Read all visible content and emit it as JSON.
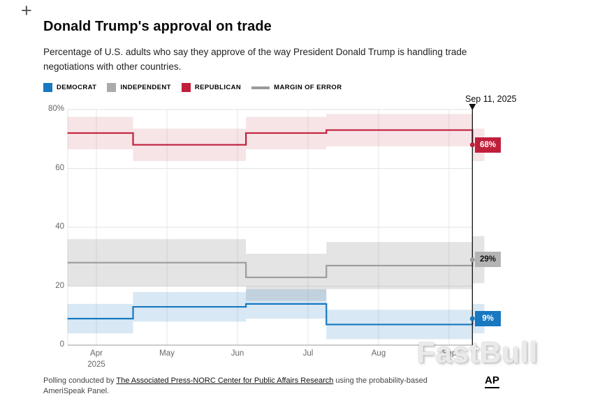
{
  "header": {
    "plus_icon": "+",
    "title": "Donald Trump's approval on trade",
    "subtitle": "Percentage of U.S. adults who say they approve of the way President Donald Trump is handling trade negotiations with other countries."
  },
  "legend": {
    "items": [
      {
        "label": "DEMOCRAT",
        "color": "#1878c0",
        "swatch": "square"
      },
      {
        "label": "INDEPENDENT",
        "color": "#ababab",
        "swatch": "square"
      },
      {
        "label": "REPUBLICAN",
        "color": "#c01f3c",
        "swatch": "square"
      },
      {
        "label": "MARGIN OF ERROR",
        "color": "#9a9a9a",
        "swatch": "line"
      }
    ]
  },
  "axes": {
    "y_ticks": [
      {
        "value": 80,
        "label": "80%"
      },
      {
        "value": 60,
        "label": "60"
      },
      {
        "value": 40,
        "label": "40"
      },
      {
        "value": 20,
        "label": "20"
      },
      {
        "value": 0,
        "label": "0"
      }
    ],
    "x_ticks": [
      {
        "month": 0,
        "label": "Apr",
        "sublabel": "2025"
      },
      {
        "month": 1,
        "label": "May"
      },
      {
        "month": 2,
        "label": "Jun"
      },
      {
        "month": 3,
        "label": "Jul"
      },
      {
        "month": 4,
        "label": "Aug"
      },
      {
        "month": 5,
        "label": "Sep"
      }
    ]
  },
  "chart_data": {
    "type": "line",
    "step": "after",
    "title": "Donald Trump's approval on trade",
    "ylim": [
      0,
      80
    ],
    "unit": "%",
    "grid": true,
    "x_domain": [
      -0.41,
      5.5
    ],
    "annotation": {
      "label": "Sep 11, 2025",
      "x_month": 5.33
    },
    "series": [
      {
        "id": "independent",
        "name": "INDEPENDENT",
        "color": "#9c9c9c",
        "band_color": "#8f8f8f",
        "band_opacity": 0.24,
        "moe": 8,
        "label_bg": "#b4b4b4",
        "label_text": "#111111",
        "final_label": "29%",
        "points": [
          [
            -0.41,
            28
          ],
          [
            0.52,
            28
          ],
          [
            2.12,
            23
          ],
          [
            3.26,
            27
          ],
          [
            5.33,
            29
          ]
        ]
      },
      {
        "id": "democrat",
        "name": "DEMOCRAT",
        "color": "#1878c0",
        "band_color": "#1878c0",
        "band_opacity": 0.17,
        "moe": 5,
        "label_bg": "#1878c0",
        "label_text": "#ffffff",
        "final_label": "9%",
        "points": [
          [
            -0.41,
            9
          ],
          [
            0.52,
            13
          ],
          [
            2.12,
            14
          ],
          [
            3.26,
            7
          ],
          [
            5.33,
            9
          ]
        ]
      },
      {
        "id": "republican",
        "name": "REPUBLICAN",
        "color": "#c01f3c",
        "band_color": "#c01f3c",
        "band_opacity": 0.12,
        "moe": 5.5,
        "label_bg": "#c01f3c",
        "label_text": "#ffffff",
        "final_label": "68%",
        "points": [
          [
            -0.41,
            72
          ],
          [
            0.52,
            68
          ],
          [
            2.12,
            72
          ],
          [
            3.26,
            73
          ],
          [
            5.33,
            68
          ]
        ]
      }
    ]
  },
  "watermark": "FastBull",
  "footer": {
    "prefix": "Polling conducted by ",
    "link": "The Associated Press-NORC Center for Public Affairs Research",
    "suffix": " using the probability-based AmeriSpeak Panel.",
    "logo": "AP"
  }
}
